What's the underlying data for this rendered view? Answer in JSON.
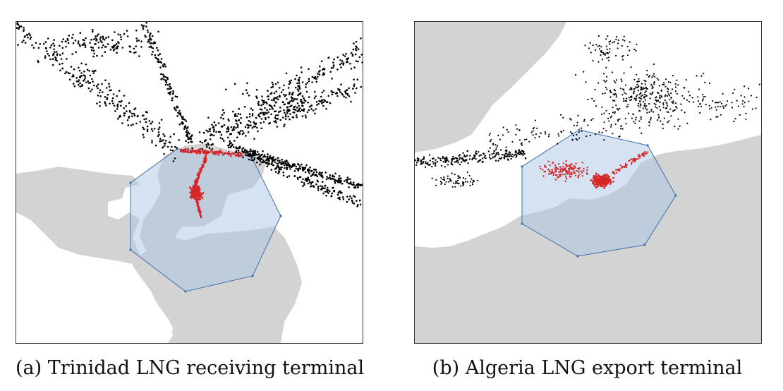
{
  "panels": [
    {
      "id": "a",
      "caption": "(a) Trinidad LNG receiving terminal",
      "colors": {
        "land": "#d3d3d3",
        "water": "#ffffff",
        "polygon_fill": "#a9c5e6",
        "polygon_stroke": "#3f6fa8",
        "outside_points": "#000000",
        "inside_points": "#d62728"
      }
    },
    {
      "id": "b",
      "caption": "(b) Algeria LNG export terminal",
      "colors": {
        "land": "#d3d3d3",
        "water": "#ffffff",
        "polygon_fill": "#a9c5e6",
        "polygon_stroke": "#3f6fa8",
        "outside_points": "#000000",
        "inside_points": "#d62728"
      }
    }
  ]
}
